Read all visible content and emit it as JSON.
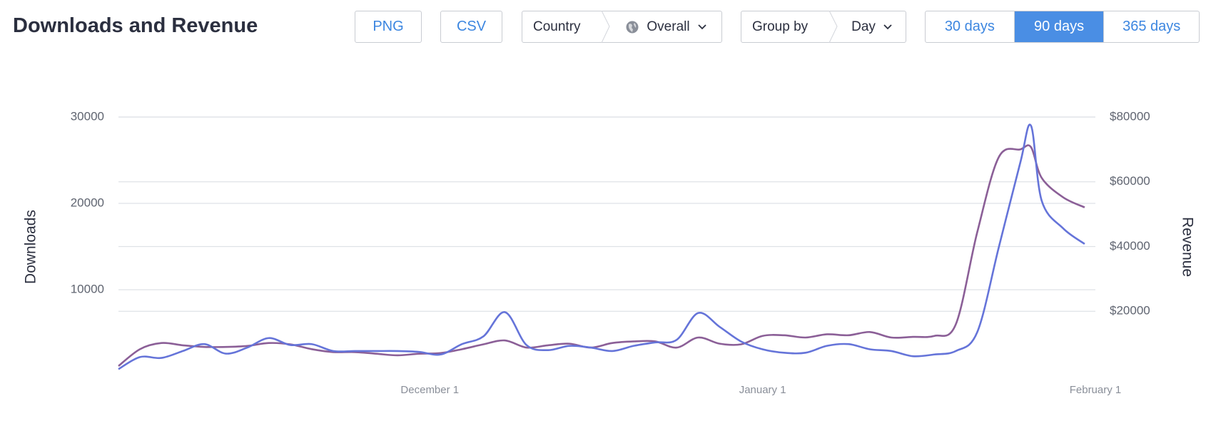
{
  "header": {
    "title": "Downloads and Revenue"
  },
  "controls": {
    "png": "PNG",
    "csv": "CSV",
    "country": {
      "label": "Country",
      "value": "Overall"
    },
    "group_by": {
      "label": "Group by",
      "value": "Day"
    },
    "ranges": [
      "30 days",
      "90 days",
      "365 days"
    ],
    "selected_range": 1
  },
  "chart_data": {
    "type": "line",
    "ylabel": "Downloads",
    "y2label": "Revenue",
    "x": [
      0,
      2,
      4,
      6,
      8,
      10,
      12,
      14,
      16,
      18,
      20,
      22,
      24,
      26,
      28,
      30,
      32,
      34,
      36,
      38,
      40,
      42,
      44,
      46,
      48,
      50,
      52,
      54,
      56,
      58,
      60,
      62,
      64,
      66,
      68,
      70,
      72,
      74,
      76,
      78,
      80,
      82,
      84,
      85,
      86,
      88,
      90
    ],
    "xlim": [
      0,
      91
    ],
    "xticks": [
      {
        "value": 29,
        "label": "December 1"
      },
      {
        "value": 60,
        "label": "January 1"
      },
      {
        "value": 91,
        "label": "February 1"
      }
    ],
    "ylim": [
      0,
      30000
    ],
    "yticks": [
      10000,
      20000,
      30000
    ],
    "y2lim": [
      0,
      80000
    ],
    "y2ticks": [
      {
        "value": 20000,
        "label": "$20000"
      },
      {
        "value": 40000,
        "label": "$40000"
      },
      {
        "value": 60000,
        "label": "$60000"
      },
      {
        "value": 80000,
        "label": "$80000"
      }
    ],
    "grid": true,
    "series": [
      {
        "color": "#6574d9",
        "axis": "y",
        "values": [
          800,
          2200,
          2100,
          2900,
          3700,
          2600,
          3300,
          4400,
          3600,
          3700,
          2900,
          2900,
          2900,
          2900,
          2800,
          2500,
          3700,
          4600,
          7400,
          3600,
          3000,
          3500,
          3300,
          2900,
          3500,
          3900,
          4200,
          7300,
          5700,
          4000,
          3100,
          2700,
          2700,
          3500,
          3700,
          3100,
          2900,
          2300,
          2500,
          2900,
          5100,
          14900,
          24700,
          29000,
          20300,
          17100,
          15300
        ]
      },
      {
        "color": "#8b5f97",
        "axis": "y2",
        "values": [
          3100,
          8300,
          10200,
          9500,
          9000,
          9000,
          9300,
          10200,
          9800,
          8300,
          7400,
          7400,
          6900,
          6400,
          6900,
          7100,
          8300,
          9800,
          11000,
          8800,
          9500,
          10000,
          8800,
          10200,
          10700,
          10700,
          8800,
          11900,
          10000,
          9800,
          12400,
          12600,
          11900,
          12900,
          12600,
          13600,
          11900,
          12100,
          12400,
          16000,
          44500,
          67600,
          70000,
          70700,
          61200,
          55200,
          52100
        ]
      }
    ]
  }
}
